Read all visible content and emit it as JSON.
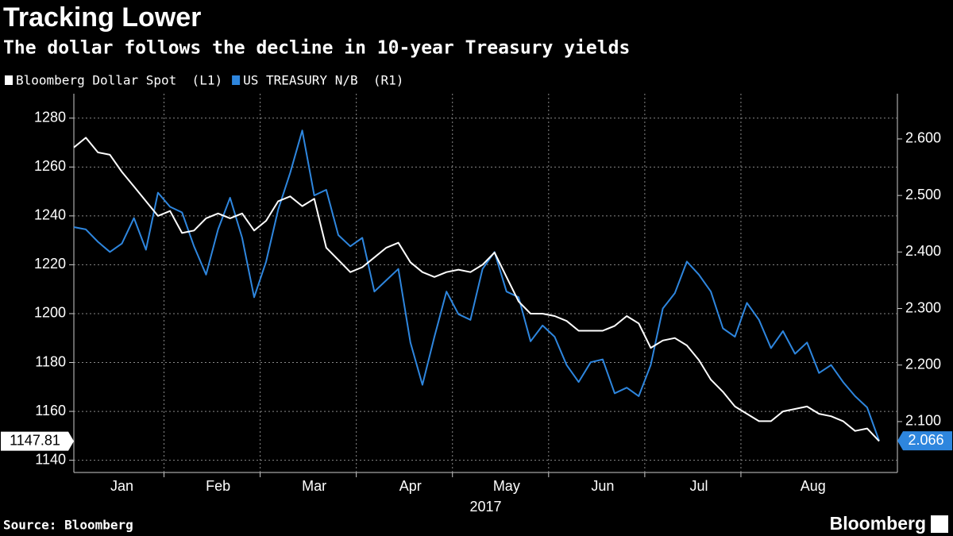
{
  "chart_data": {
    "type": "line",
    "title": "Tracking Lower",
    "subtitle": "The dollar follows the decline in 10-year Treasury yields",
    "x_axis_label": "2017",
    "source": "Source: Bloomberg",
    "logo": "Bloomberg",
    "categories": [
      "Jan",
      null,
      null,
      null,
      null,
      null,
      null,
      null,
      "Feb",
      null,
      null,
      null,
      null,
      null,
      null,
      null,
      "Mar",
      null,
      null,
      null,
      null,
      null,
      null,
      null,
      "Apr",
      null,
      null,
      null,
      null,
      null,
      null,
      null,
      "May",
      null,
      null,
      null,
      null,
      null,
      null,
      null,
      "Jun",
      null,
      null,
      null,
      null,
      null,
      null,
      null,
      "Jul",
      null,
      null,
      null,
      null,
      null,
      null,
      null,
      "Aug",
      null,
      null,
      null,
      null,
      null,
      null,
      null,
      null,
      null,
      null,
      null
    ],
    "series": [
      {
        "name": "Bloomberg Dollar Spot  (L1)",
        "color": "#ffffff",
        "axis": "y",
        "values": [
          1268,
          1272,
          1266,
          1265,
          1258,
          1252,
          1246,
          1240,
          1242,
          1233,
          1234,
          1239,
          1241,
          1239,
          1241,
          1234,
          1238,
          1246,
          1248,
          1244,
          1247,
          1227,
          1222,
          1217,
          1219,
          1223,
          1227,
          1229,
          1221,
          1217,
          1215,
          1217,
          1218,
          1217,
          1220,
          1225,
          1215,
          1205,
          1200,
          1200,
          1199,
          1197,
          1193,
          1193,
          1193,
          1195,
          1199,
          1196,
          1186,
          1189,
          1190,
          1187,
          1181,
          1173,
          1168,
          1162,
          1159,
          1156,
          1156,
          1160,
          1161,
          1162,
          1159,
          1158,
          1156,
          1152,
          1153,
          1147.81
        ]
      },
      {
        "name": "US TREASURY N/B  (R1)",
        "color": "#2e86de",
        "axis": "y2",
        "values": [
          2.444,
          2.44,
          2.418,
          2.4,
          2.415,
          2.46,
          2.404,
          2.505,
          2.48,
          2.47,
          2.41,
          2.36,
          2.44,
          2.496,
          2.425,
          2.32,
          2.383,
          2.475,
          2.54,
          2.615,
          2.5,
          2.51,
          2.43,
          2.41,
          2.425,
          2.33,
          2.35,
          2.37,
          2.24,
          2.165,
          2.25,
          2.33,
          2.29,
          2.28,
          2.37,
          2.4,
          2.33,
          2.32,
          2.242,
          2.27,
          2.25,
          2.2,
          2.17,
          2.205,
          2.21,
          2.15,
          2.16,
          2.145,
          2.2,
          2.3,
          2.327,
          2.383,
          2.36,
          2.33,
          2.265,
          2.25,
          2.31,
          2.28,
          2.23,
          2.26,
          2.22,
          2.24,
          2.186,
          2.2,
          2.17,
          2.145,
          2.125,
          2.066
        ]
      }
    ],
    "ylim": [
      1135,
      1290
    ],
    "yticks": [
      1140,
      1160,
      1180,
      1200,
      1220,
      1240,
      1260,
      1280
    ],
    "y2lim": [
      2.01,
      2.68
    ],
    "y2ticks": [
      {
        "value": 2.1,
        "label": "2.100"
      },
      {
        "value": 2.2,
        "label": "2.200"
      },
      {
        "value": 2.3,
        "label": "2.300"
      },
      {
        "value": 2.4,
        "label": "2.400"
      },
      {
        "value": 2.5,
        "label": "2.500"
      },
      {
        "value": 2.6,
        "label": "2.600"
      }
    ],
    "grid": true
  }
}
